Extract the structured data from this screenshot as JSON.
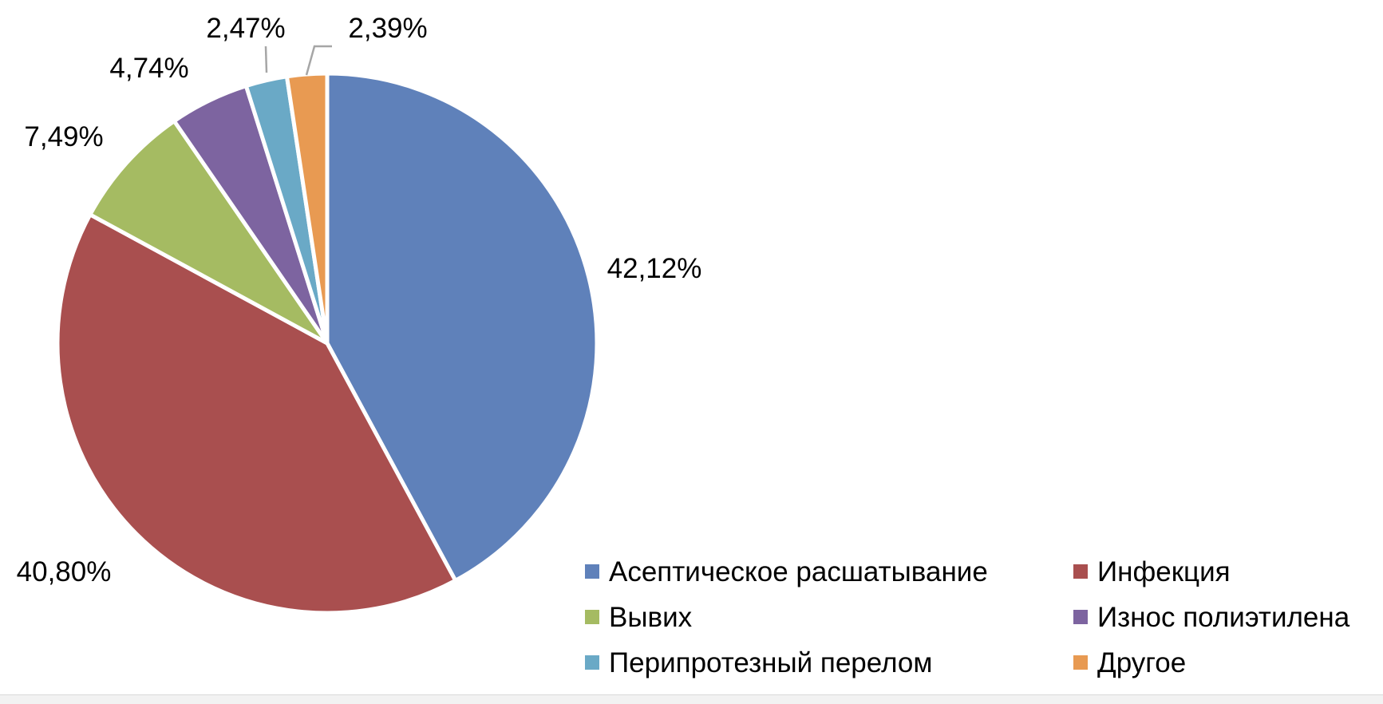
{
  "chart_data": {
    "type": "pie",
    "title": "",
    "categories": [
      "Асептическое расшатывание",
      "Инфекция",
      "Вывих",
      "Износ полиэтилена",
      "Перипротезный перелом",
      "Другое"
    ],
    "values": [
      42.12,
      40.8,
      7.49,
      4.74,
      2.47,
      2.39
    ],
    "value_labels": [
      "42,12%",
      "40,80%",
      "7,49%",
      "4,74%",
      "2,47%",
      "2,39%"
    ],
    "colors": [
      "#5f81ba",
      "#a94f4f",
      "#a5bb62",
      "#7d64a0",
      "#6aa9c6",
      "#e89a52"
    ],
    "start_angle_deg": 0,
    "direction": "clockwise",
    "legend_position": "bottom-right"
  }
}
